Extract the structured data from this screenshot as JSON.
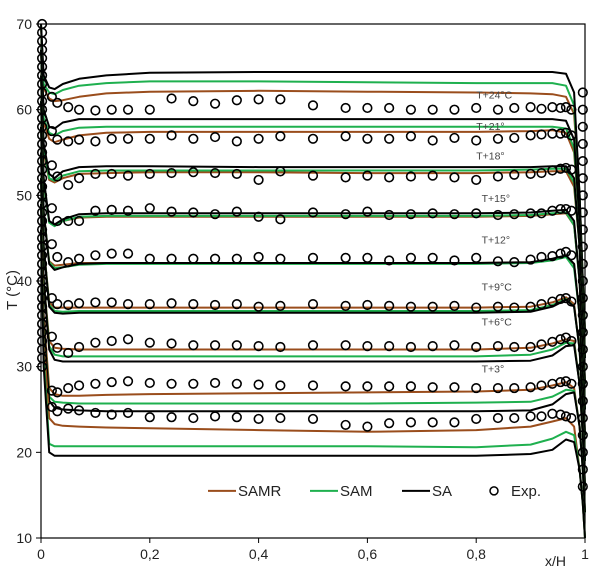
{
  "chart_data": {
    "type": "line",
    "title": "",
    "xlabel": "x/H",
    "ylabel": "T (°C)",
    "xlim": [
      0,
      1
    ],
    "ylim": [
      10,
      70
    ],
    "x_ticks": [
      0,
      0.2,
      0.4,
      0.6,
      0.8,
      1
    ],
    "x_tick_labels": [
      "0",
      "0,2",
      "0,4",
      "0,6",
      "0,8",
      "1"
    ],
    "y_ticks": [
      10,
      20,
      30,
      40,
      50,
      60,
      70
    ],
    "y_tick_labels": [
      "10",
      "20",
      "30",
      "40",
      "50",
      "60",
      "70"
    ],
    "grid": false,
    "legend_position": "bottom-center",
    "colors": {
      "SAMR": "#9a4d1c",
      "SAM": "#1fb04f",
      "SA": "#000000",
      "Exp": "#000000"
    },
    "legend": [
      {
        "name": "SAMR",
        "kind": "line"
      },
      {
        "name": "SAM",
        "kind": "line"
      },
      {
        "name": "SA",
        "kind": "line"
      },
      {
        "name": "Exp.",
        "kind": "marker"
      }
    ],
    "line_x": [
      0,
      0.005,
      0.015,
      0.025,
      0.04,
      0.07,
      0.12,
      0.2,
      0.4,
      0.6,
      0.8,
      0.9,
      0.94,
      0.965,
      0.98,
      0.99,
      0.996,
      1
    ],
    "exp_x": [
      0.02,
      0.03,
      0.05,
      0.07,
      0.1,
      0.13,
      0.16,
      0.2,
      0.24,
      0.28,
      0.32,
      0.36,
      0.4,
      0.44,
      0.5,
      0.56,
      0.6,
      0.64,
      0.68,
      0.72,
      0.76,
      0.8,
      0.84,
      0.87,
      0.9,
      0.92,
      0.94,
      0.955,
      0.965,
      0.975
    ],
    "sets": [
      {
        "label": "T+24°C",
        "label_pos": [
          0.8,
          61.3
        ],
        "SA": [
          70,
          64,
          62.6,
          62.4,
          63,
          63.6,
          64,
          64.3,
          64.4,
          64.4,
          64.4,
          64.4,
          64.4,
          64.2,
          62,
          50,
          40,
          34
        ],
        "SAM": [
          70,
          63,
          62,
          61.8,
          62.3,
          62.8,
          63.1,
          63.3,
          63.3,
          63.2,
          63.1,
          63.1,
          63.1,
          62.8,
          60.5,
          50,
          40,
          34
        ],
        "SAMR": [
          70,
          62.5,
          61.3,
          61,
          61.1,
          61.5,
          61.9,
          62.1,
          62.2,
          62.1,
          62.0,
          61.9,
          61.8,
          61.5,
          59.5,
          50,
          40,
          34
        ],
        "Exp": [
          61.5,
          60.8,
          60.3,
          60.0,
          59.9,
          60.0,
          60.0,
          60.0,
          61.3,
          61.0,
          60.7,
          61.1,
          61.2,
          61.2,
          60.5,
          60.2,
          60.2,
          60.2,
          60.0,
          60.0,
          60.0,
          60.2,
          60.0,
          60.2,
          60.3,
          60.1,
          60.3,
          60.2,
          60.3,
          60.0
        ]
      },
      {
        "label": "T+21°",
        "label_pos": [
          0.8,
          57.6
        ],
        "SA": [
          67,
          60,
          58,
          57.8,
          58.5,
          58.9,
          58.9,
          58.9,
          58.9,
          58.9,
          58.9,
          58.9,
          58.9,
          58.7,
          56.5,
          47,
          37,
          31
        ],
        "SAM": [
          67,
          59,
          57.3,
          57,
          57.5,
          57.9,
          58.0,
          58.0,
          58.0,
          58.0,
          58.0,
          58.0,
          58.0,
          57.8,
          55.5,
          47,
          37,
          31
        ],
        "SAMR": [
          67,
          58.5,
          56.6,
          56.2,
          56.5,
          57.0,
          57.3,
          57.4,
          57.4,
          57.4,
          57.4,
          57.5,
          57.6,
          57.3,
          55,
          47,
          37,
          31
        ],
        "Exp": [
          57.5,
          56.5,
          56.3,
          56.5,
          56.3,
          56.6,
          56.6,
          56.6,
          57.0,
          56.6,
          56.8,
          56.3,
          56.6,
          56.9,
          56.6,
          56.9,
          56.6,
          56.6,
          56.9,
          56.4,
          56.7,
          56.4,
          56.6,
          56.7,
          57.0,
          57.1,
          57.2,
          57.2,
          57.3,
          57.0
        ]
      },
      {
        "label": "T+18°",
        "label_pos": [
          0.8,
          54.2
        ],
        "SA": [
          64,
          56,
          52.5,
          52,
          52.8,
          53.3,
          53.4,
          53.4,
          53.3,
          53.3,
          53.3,
          53.3,
          53.4,
          53.4,
          52,
          44,
          34,
          28
        ],
        "SAM": [
          64,
          55.5,
          52,
          51.7,
          52.3,
          52.8,
          52.9,
          52.9,
          52.9,
          52.9,
          52.9,
          53.0,
          53.1,
          53.1,
          51.5,
          44,
          34,
          28
        ],
        "SAMR": [
          64,
          55,
          51.8,
          51.5,
          52,
          52.5,
          52.6,
          52.7,
          52.7,
          52.6,
          52.6,
          52.7,
          52.8,
          52.8,
          51,
          44,
          34,
          28
        ],
        "Exp": [
          53.5,
          52.2,
          51.2,
          52.0,
          52.5,
          52.5,
          52.3,
          52.5,
          52.6,
          52.7,
          52.6,
          52.5,
          51.8,
          52.8,
          52.3,
          52.1,
          52.3,
          52.1,
          52.2,
          52.3,
          52.1,
          51.8,
          52.2,
          52.4,
          52.5,
          52.6,
          52.9,
          53.1,
          53.2,
          53.0
        ]
      },
      {
        "label": "T+15°",
        "label_pos": [
          0.81,
          49.2
        ],
        "SA": [
          61,
          52,
          47,
          46.6,
          47.2,
          47.8,
          47.9,
          47.9,
          47.9,
          47.9,
          47.9,
          48.0,
          48.2,
          48.3,
          47,
          40,
          31,
          25
        ],
        "SAM": [
          61,
          51.5,
          46.8,
          46.4,
          47,
          47.5,
          47.6,
          47.6,
          47.6,
          47.6,
          47.6,
          47.7,
          47.9,
          48.0,
          46.5,
          40,
          31,
          25
        ],
        "SAMR": [
          61,
          51.5,
          46.9,
          46.5,
          47,
          47.4,
          47.5,
          47.5,
          47.5,
          47.5,
          47.5,
          47.6,
          47.8,
          47.9,
          46.5,
          40,
          31,
          25
        ],
        "Exp": [
          48.5,
          47.0,
          47.0,
          47.0,
          48.2,
          48.3,
          48.2,
          48.5,
          48.1,
          48.0,
          47.8,
          48.1,
          47.5,
          47.2,
          48.0,
          47.8,
          48.1,
          47.7,
          47.8,
          47.9,
          47.8,
          47.9,
          47.7,
          47.8,
          47.9,
          47.9,
          48.2,
          48.4,
          48.4,
          48.2
        ]
      },
      {
        "label": "T+12°",
        "label_pos": [
          0.81,
          44.4
        ],
        "SA": [
          58,
          48,
          42,
          41.3,
          41.6,
          42.0,
          42.1,
          42.1,
          42.1,
          42.1,
          42.1,
          42.2,
          42.6,
          43.0,
          42,
          36,
          28,
          22
        ],
        "SAM": [
          58,
          48,
          42.2,
          41.5,
          41.6,
          41.9,
          42.0,
          42.0,
          42.0,
          42.0,
          42.0,
          42.1,
          42.4,
          42.8,
          41.5,
          36,
          28,
          22
        ],
        "SAMR": [
          58,
          48,
          42.3,
          41.8,
          41.9,
          42.1,
          42.1,
          42.1,
          42.1,
          42.1,
          42.1,
          42.2,
          42.5,
          42.9,
          42,
          36,
          28,
          22
        ],
        "Exp": [
          44.3,
          42.8,
          42.2,
          42.6,
          43.0,
          43.2,
          43.2,
          42.6,
          42.6,
          42.6,
          42.6,
          42.6,
          42.8,
          42.6,
          42.7,
          42.7,
          42.7,
          42.4,
          42.7,
          42.7,
          42.4,
          42.7,
          42.3,
          42.2,
          42.5,
          42.8,
          42.9,
          43.2,
          43.4,
          43.0
        ]
      },
      {
        "label": "T+9°C",
        "label_pos": [
          0.81,
          38.9
        ],
        "SA": [
          55,
          44,
          37,
          36.3,
          36.2,
          36.3,
          36.3,
          36.3,
          36.3,
          36.3,
          36.3,
          36.4,
          37,
          37.8,
          37,
          32,
          25,
          19
        ],
        "SAM": [
          55,
          44,
          37.2,
          36.5,
          36.4,
          36.5,
          36.5,
          36.5,
          36.5,
          36.5,
          36.5,
          36.6,
          37.2,
          37.9,
          37,
          32,
          25,
          19
        ],
        "SAMR": [
          55,
          44,
          37.5,
          36.9,
          36.9,
          36.9,
          36.9,
          36.9,
          36.9,
          36.9,
          36.9,
          37.0,
          37.5,
          38.1,
          37.3,
          32,
          25,
          19
        ],
        "Exp": [
          38.0,
          37.3,
          37.2,
          37.4,
          37.5,
          37.5,
          37.3,
          37.3,
          37.4,
          37.3,
          37.2,
          37.3,
          37.0,
          37.1,
          37.3,
          37.1,
          37.2,
          37.1,
          37.0,
          37.0,
          37.1,
          36.9,
          37.0,
          36.9,
          37.0,
          37.3,
          37.6,
          37.9,
          38.0,
          37.6
        ]
      },
      {
        "label": "T+6°C",
        "label_pos": [
          0.81,
          34.8
        ],
        "SA": [
          52,
          40,
          32,
          30.8,
          30.6,
          30.6,
          30.6,
          30.6,
          30.6,
          30.6,
          30.6,
          30.7,
          31.3,
          32.4,
          32.5,
          28,
          22,
          16
        ],
        "SAM": [
          52,
          40,
          32.4,
          31.4,
          31.2,
          31.2,
          31.2,
          31.2,
          31.2,
          31.2,
          31.2,
          31.4,
          32.0,
          32.8,
          32.7,
          28,
          22,
          16
        ],
        "SAMR": [
          52,
          40,
          33,
          32.2,
          32.1,
          32.0,
          32.0,
          32.0,
          32.0,
          32.0,
          32.0,
          32.2,
          32.7,
          33.2,
          33,
          28,
          22,
          16
        ],
        "Exp": [
          33.5,
          32.2,
          31.6,
          32.3,
          32.8,
          33.0,
          33.2,
          32.8,
          32.7,
          32.5,
          32.5,
          32.5,
          32.4,
          32.3,
          32.5,
          32.5,
          32.4,
          32.4,
          32.3,
          32.4,
          32.5,
          32.3,
          32.4,
          32.3,
          32.3,
          32.6,
          32.9,
          33.2,
          33.4,
          33.0
        ]
      },
      {
        "label": "T+3°",
        "label_pos": [
          0.81,
          29.3
        ],
        "SA": [
          49,
          35,
          26,
          25.2,
          25.0,
          24.9,
          24.8,
          24.8,
          24.8,
          24.8,
          24.8,
          24.9,
          25.6,
          26.8,
          27,
          23,
          18,
          13
        ],
        "SAM": [
          49,
          35,
          26.5,
          25.9,
          25.8,
          25.7,
          25.7,
          25.7,
          25.7,
          25.7,
          25.8,
          25.9,
          26.5,
          27.3,
          27.2,
          23,
          18,
          13
        ],
        "SAMR": [
          49,
          36,
          27.5,
          26.8,
          26.6,
          26.6,
          26.7,
          26.8,
          26.9,
          27.0,
          27.1,
          27.3,
          27.8,
          28.2,
          27.5,
          23,
          18,
          13
        ],
        "Exp": [
          27.2,
          27.0,
          27.5,
          27.8,
          28.0,
          28.2,
          28.3,
          28.1,
          28.0,
          28.0,
          28.1,
          28.0,
          27.9,
          27.8,
          27.8,
          27.7,
          27.7,
          27.7,
          27.7,
          27.6,
          27.6,
          27.5,
          27.5,
          27.5,
          27.6,
          27.8,
          28.0,
          28.2,
          28.3,
          28.0
        ]
      },
      {
        "label": "",
        "label_pos": null,
        "SA": [
          46,
          30,
          20,
          19.6,
          19.6,
          19.6,
          19.6,
          19.6,
          19.6,
          19.6,
          19.6,
          19.8,
          20.3,
          21.5,
          21.2,
          18,
          14,
          10
        ],
        "SAM": [
          46,
          31,
          21,
          20.7,
          20.7,
          20.7,
          20.7,
          20.7,
          20.7,
          20.7,
          20.6,
          20.9,
          21.6,
          22.4,
          22,
          18,
          14,
          10
        ],
        "SAMR": [
          46,
          33,
          24,
          23.3,
          23.1,
          23.0,
          22.9,
          22.8,
          22.6,
          22.4,
          22.6,
          23.0,
          23.6,
          24.0,
          23,
          18,
          14,
          10
        ],
        "Exp": [
          25.3,
          24.8,
          25.1,
          24.9,
          24.6,
          24.4,
          24.6,
          24.1,
          24.1,
          24.0,
          24.2,
          24.1,
          23.9,
          24.0,
          23.9,
          23.2,
          23.0,
          23.4,
          23.5,
          23.5,
          23.5,
          23.9,
          24.0,
          24.0,
          24.2,
          24.2,
          24.5,
          24.4,
          24.2,
          24.0
        ]
      }
    ],
    "wall_exp": {
      "left_x": 0.002,
      "left_y": [
        70,
        69,
        68,
        67,
        66,
        65,
        64,
        63,
        62,
        61,
        60,
        59,
        58,
        57,
        56,
        55,
        54,
        53,
        52,
        51,
        50,
        49,
        48,
        47,
        46,
        45,
        44,
        43,
        42,
        41,
        40,
        39,
        38,
        37,
        36,
        35,
        34,
        33,
        32,
        31,
        30
      ],
      "right_x": 0.996,
      "right_y": [
        62,
        60,
        58,
        56,
        54,
        52,
        50,
        48,
        46,
        44,
        42,
        40,
        38,
        36,
        34,
        32,
        30,
        28,
        26,
        24,
        22,
        20,
        18,
        16
      ]
    }
  }
}
